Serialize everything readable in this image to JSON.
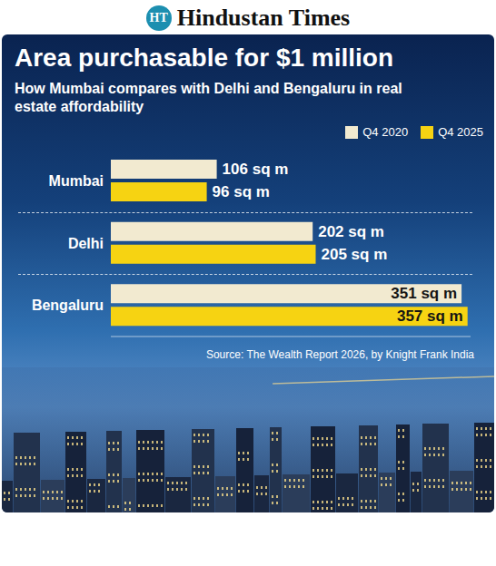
{
  "masthead": {
    "logo": "HT",
    "name": "Hindustan Times"
  },
  "chart_data": {
    "type": "bar",
    "orientation": "horizontal",
    "title": "Area purchasable for $1 million",
    "subtitle": "How Mumbai compares with Delhi and Bengaluru in real estate affordability",
    "categories": [
      "Mumbai",
      "Delhi",
      "Bengaluru"
    ],
    "series": [
      {
        "name": "Q4 2020",
        "color": "#f2ead0",
        "values": [
          106,
          202,
          351
        ],
        "value_labels": [
          "106 sq m",
          "202 sq m",
          "351 sq m"
        ]
      },
      {
        "name": "Q4 2025",
        "color": "#f6d312",
        "values": [
          96,
          205,
          357
        ],
        "value_labels": [
          "96 sq m",
          "205 sq m",
          "357 sq m"
        ]
      }
    ],
    "xlim": [
      0,
      360
    ],
    "xticks": [],
    "data_labels": true,
    "tick_labels": "y",
    "legend": "upper right",
    "source": "Source: The Wealth Report 2026, by Knight Frank India"
  }
}
